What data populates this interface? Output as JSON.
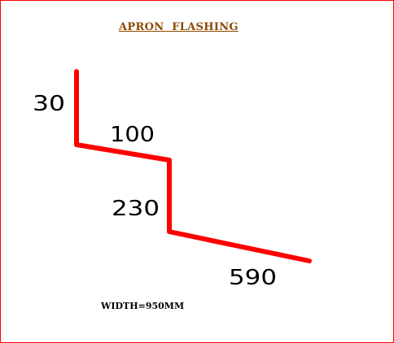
{
  "title": "APRON  FLASHING",
  "width_note": "WIDTH=950MM",
  "dimensions": {
    "seg1": "30",
    "seg2": "100",
    "seg3": "230",
    "seg4": "590"
  },
  "colors": {
    "border": "#ff0000",
    "profile": "#ff0000",
    "title": "#8b4a00",
    "text": "#000000"
  }
}
